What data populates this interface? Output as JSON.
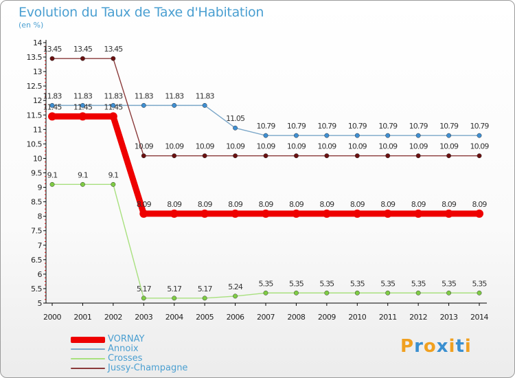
{
  "title": "Evolution du Taux de Taxe d'Habitation",
  "subtitle": "(en %)",
  "logo": {
    "text": "Proxiti",
    "letters": [
      {
        "ch": "P",
        "color": "#f0a020"
      },
      {
        "ch": "r",
        "color": "#3a8fd0"
      },
      {
        "ch": "o",
        "color": "#f0a020"
      },
      {
        "ch": "x",
        "color": "#3a8fd0"
      },
      {
        "ch": "i",
        "color": "#f0a020"
      },
      {
        "ch": "t",
        "color": "#3a8fd0"
      },
      {
        "ch": "i",
        "color": "#f0a020"
      }
    ]
  },
  "chart_data": {
    "type": "line",
    "title": "Evolution du Taux de Taxe d'Habitation",
    "subtitle": "(en %)",
    "xlabel": "",
    "ylabel": "",
    "x": [
      "2000",
      "2001",
      "2002",
      "2003",
      "2004",
      "2005",
      "2006",
      "2007",
      "2008",
      "2009",
      "2010",
      "2011",
      "2012",
      "2013",
      "2014"
    ],
    "ylim": [
      5,
      14
    ],
    "yticks": [
      5,
      5.5,
      6,
      6.5,
      7,
      7.5,
      8,
      8.5,
      9,
      9.5,
      10,
      10.5,
      11,
      11.5,
      12,
      12.5,
      13,
      13.5,
      14
    ],
    "ytick_labels": [
      "5",
      "5.5",
      "6",
      "6.5",
      "7",
      "7.5",
      "8",
      "8.5",
      "9",
      "9.5",
      "10",
      "10.5",
      "11",
      "11.5",
      "12",
      "12.5",
      "13",
      "13.5",
      "14"
    ],
    "grid": false,
    "legend_position": "bottom-left",
    "series": [
      {
        "name": "VORNAY",
        "color": "#ee0000",
        "thick": true,
        "values": [
          11.45,
          11.45,
          11.45,
          8.09,
          8.09,
          8.09,
          8.09,
          8.09,
          8.09,
          8.09,
          8.09,
          8.09,
          8.09,
          8.09,
          8.09
        ],
        "labels": [
          "11.45",
          "11.45",
          "11.45",
          "8.09",
          "8.09",
          "8.09",
          "8.09",
          "8.09",
          "8.09",
          "8.09",
          "8.09",
          "8.09",
          "8.09",
          "8.09",
          "8.09"
        ]
      },
      {
        "name": "Annoix",
        "color": "#7aa6c8",
        "marker": "#3f8fd2",
        "thick": false,
        "values": [
          11.83,
          11.83,
          11.83,
          11.83,
          11.83,
          11.83,
          11.05,
          10.79,
          10.79,
          10.79,
          10.79,
          10.79,
          10.79,
          10.79,
          10.79
        ],
        "labels": [
          "11.83",
          "11.83",
          "11.83",
          "11.83",
          "11.83",
          "11.83",
          "11.05",
          "10.79",
          "10.79",
          "10.79",
          "10.79",
          "10.79",
          "10.79",
          "10.79",
          "10.79"
        ]
      },
      {
        "name": "Crosses",
        "color": "#a8e07e",
        "marker": "#7fcc44",
        "thick": false,
        "values": [
          9.1,
          9.1,
          9.1,
          5.17,
          5.17,
          5.17,
          5.24,
          5.35,
          5.35,
          5.35,
          5.35,
          5.35,
          5.35,
          5.35,
          5.35
        ],
        "labels": [
          "9.1",
          "9.1",
          "9.1",
          "5.17",
          "5.17",
          "5.17",
          "5.24",
          "5.35",
          "5.35",
          "5.35",
          "5.35",
          "5.35",
          "5.35",
          "5.35",
          "5.35"
        ]
      },
      {
        "name": "Jussy-Champagne",
        "color": "#8a3a3a",
        "marker": "#6a1010",
        "thick": false,
        "values": [
          13.45,
          13.45,
          13.45,
          10.09,
          10.09,
          10.09,
          10.09,
          10.09,
          10.09,
          10.09,
          10.09,
          10.09,
          10.09,
          10.09,
          10.09
        ],
        "labels": [
          "13.45",
          "13.45",
          "13.45",
          "10.09",
          "10.09",
          "10.09",
          "10.09",
          "10.09",
          "10.09",
          "10.09",
          "10.09",
          "10.09",
          "10.09",
          "10.09",
          "10.09"
        ]
      }
    ]
  }
}
